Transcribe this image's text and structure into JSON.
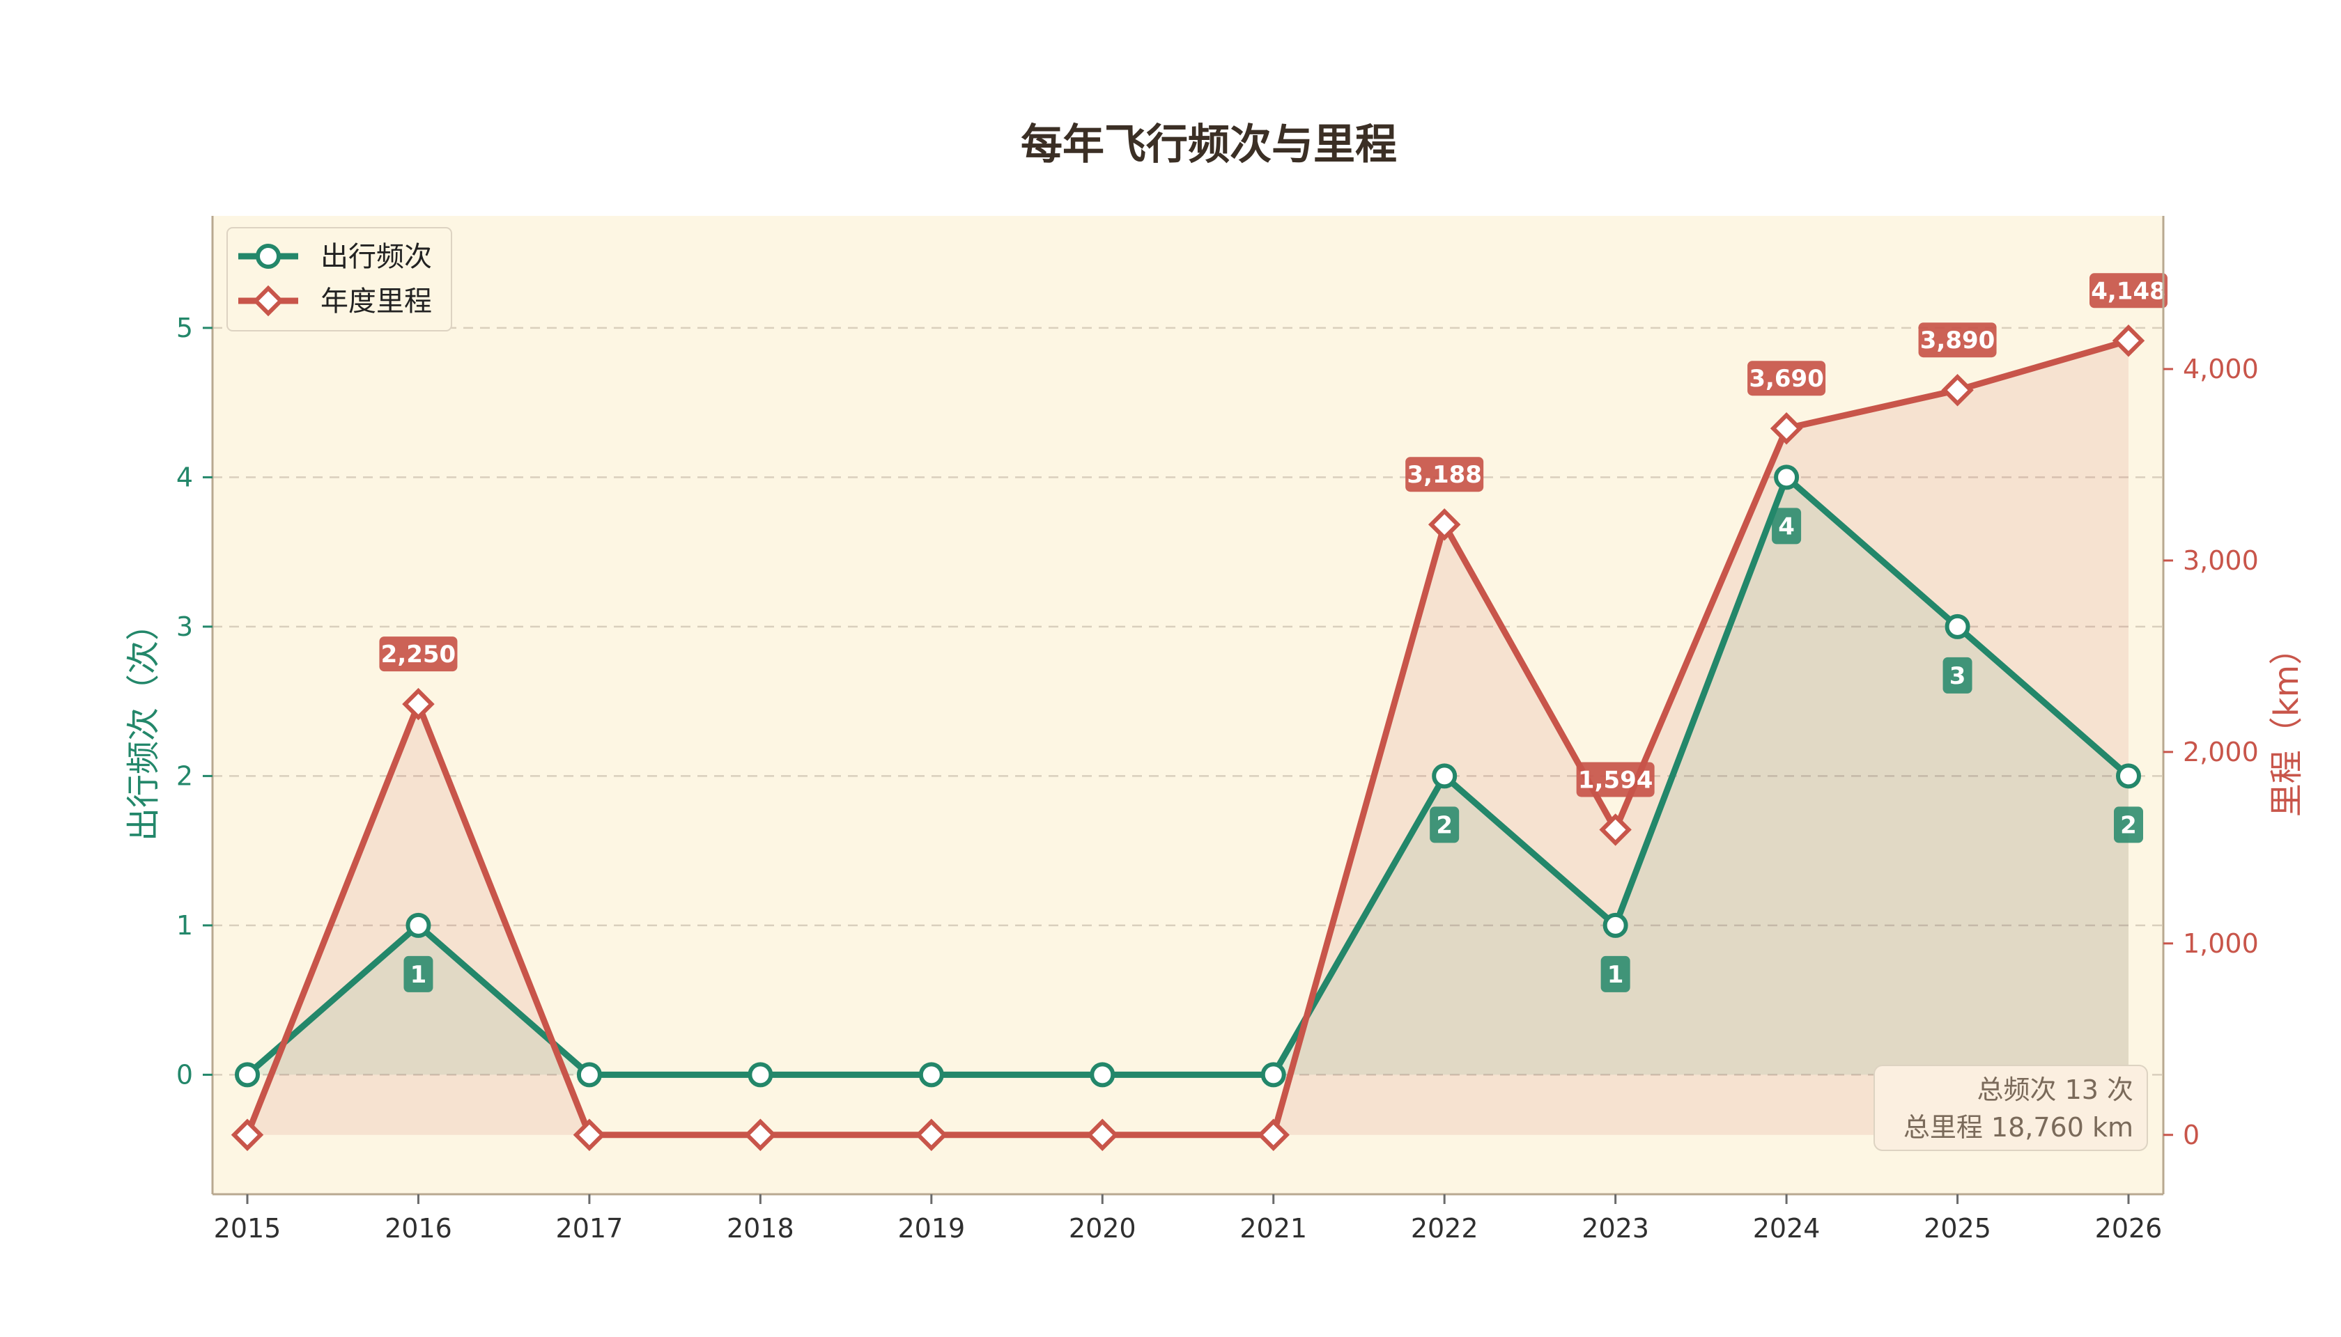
{
  "colors": {
    "freq": "#23876a",
    "mileage": "#c8554a",
    "plot_bg": "#fdf6e3",
    "grid": "#d9cfbd"
  },
  "chart_data": {
    "type": "line",
    "title": "每年飞行频次与里程",
    "x": [
      "2015",
      "2016",
      "2017",
      "2018",
      "2019",
      "2020",
      "2021",
      "2022",
      "2023",
      "2024",
      "2025",
      "2026"
    ],
    "series": [
      {
        "name": "出行频次",
        "axis": "left",
        "values": [
          0,
          1,
          0,
          0,
          0,
          0,
          0,
          2,
          1,
          4,
          3,
          2
        ]
      },
      {
        "name": "年度里程",
        "axis": "right",
        "values": [
          0,
          2250,
          0,
          0,
          0,
          0,
          0,
          3188,
          1594,
          3690,
          3890,
          4148
        ]
      }
    ],
    "y_left": {
      "label": "出行频次（次）",
      "range": [
        -0.8,
        5.75
      ],
      "ticks": [
        0,
        1,
        2,
        3,
        4,
        5
      ]
    },
    "y_right": {
      "label": "里程（km）",
      "range": [
        -310,
        4800
      ],
      "ticks": [
        "0",
        "1,000",
        "2,000",
        "3,000",
        "4,000"
      ],
      "tick_values": [
        0,
        1000,
        2000,
        3000,
        4000
      ]
    },
    "grid": true,
    "legend_position": "top-left",
    "freq_labels": [
      "1",
      "2",
      "1",
      "4",
      "3",
      "2"
    ],
    "mileage_labels": [
      "2,250",
      "3,188",
      "1,594",
      "3,690",
      "3,890",
      "4,148"
    ],
    "summary": {
      "line1": "总频次 13 次",
      "line2": "总里程 18,760 km"
    }
  }
}
